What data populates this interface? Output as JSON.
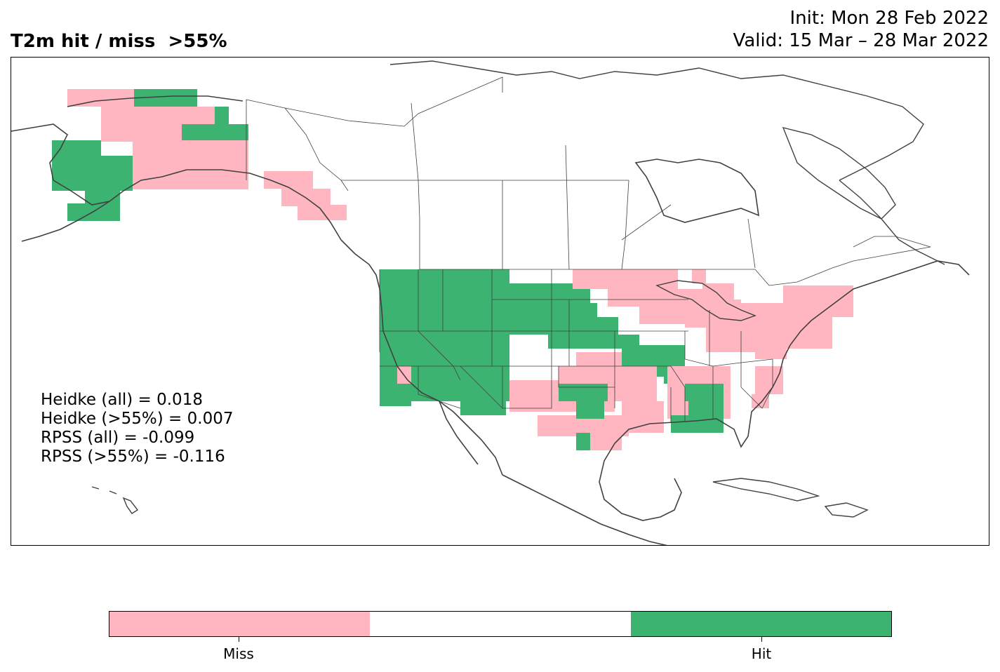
{
  "title": "T2m hit / miss  >55%",
  "init_line": "Init: Mon 28 Feb 2022",
  "valid_line": "Valid: 15 Mar – 28 Mar 2022",
  "scores": [
    "Heidke (all) = 0.018",
    "Heidke (>55%) = 0.007",
    "RPSS (all) = -0.099",
    "RPSS (>55%) = -0.116"
  ],
  "colors": {
    "miss": "#ffb6c1",
    "neutral": "#ffffff",
    "hit": "#3cb371",
    "coast": "#404040"
  },
  "colorbar": {
    "labels": [
      "Miss",
      "Hit"
    ]
  }
}
